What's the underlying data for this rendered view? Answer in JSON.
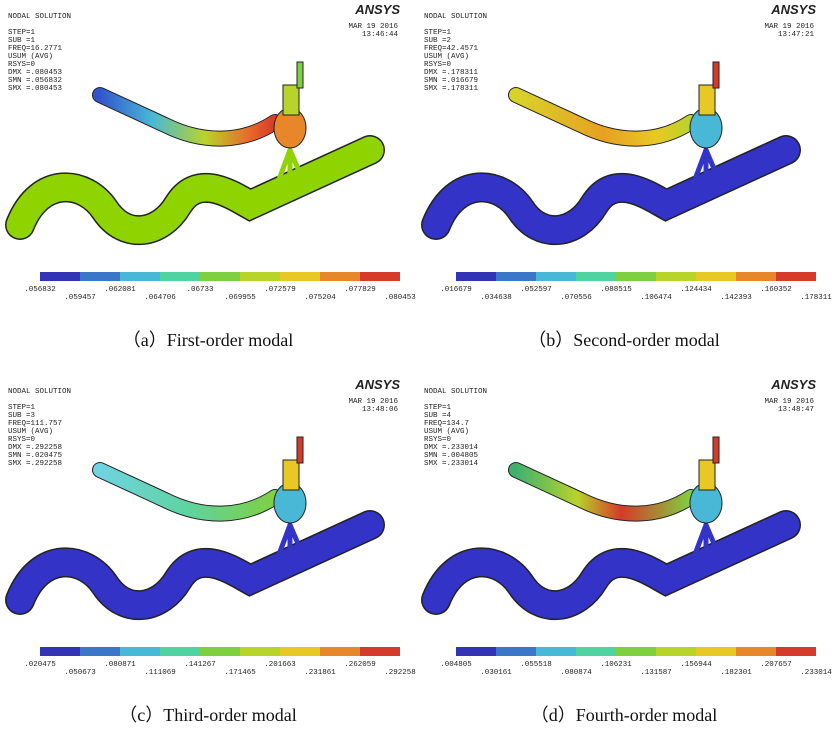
{
  "panels": [
    {
      "info": [
        "NODAL SOLUTION",
        "STEP=1",
        "SUB =1",
        "FREQ=16.2771",
        "USUM       (AVG)",
        "RSYS=0",
        "DMX =.080453",
        "SMN =.056832",
        "SMX =.080453"
      ],
      "date": "MAR 19 2016",
      "time": "13:46:44",
      "logo": "ANSYS",
      "legend": [
        ".056832",
        ".059457",
        ".062081",
        ".064706",
        ".06733",
        ".069955",
        ".072579",
        ".075204",
        ".077829",
        ".080453"
      ],
      "caption": "（a）First-order modal"
    },
    {
      "info": [
        "NODAL SOLUTION",
        "STEP=1",
        "SUB =2",
        "FREQ=42.4571",
        "USUM       (AVG)",
        "RSYS=0",
        "DMX =.178311",
        "SMN =.016679",
        "SMX =.178311"
      ],
      "date": "MAR 19 2016",
      "time": "13:47:21",
      "logo": "ANSYS",
      "legend": [
        ".016679",
        ".034638",
        ".052597",
        ".070556",
        ".088515",
        ".106474",
        ".124434",
        ".142393",
        ".160352",
        ".178311"
      ],
      "caption": "（b）Second-order modal"
    },
    {
      "info": [
        "NODAL SOLUTION",
        "STEP=1",
        "SUB =3",
        "FREQ=111.757",
        "USUM       (AVG)",
        "RSYS=0",
        "DMX =.292258",
        "SMN =.020475",
        "SMX =.292258"
      ],
      "date": "MAR 19 2016",
      "time": "13:48:06",
      "logo": "ANSYS",
      "legend": [
        ".020475",
        ".050673",
        ".080871",
        ".111069",
        ".141267",
        ".171465",
        ".201663",
        ".231861",
        ".262059",
        ".292258"
      ],
      "caption": "（c）Third-order modal"
    },
    {
      "info": [
        "NODAL SOLUTION",
        "STEP=1",
        "SUB =4",
        "FREQ=134.7",
        "USUM       (AVG)",
        "RSYS=0",
        "DMX =.233014",
        "SMN =.004805",
        "SMX =.233014"
      ],
      "date": "MAR 19 2016",
      "time": "13:48:47",
      "logo": "ANSYS",
      "legend": [
        ".004805",
        ".030161",
        ".055518",
        ".080874",
        ".106231",
        ".131587",
        ".156944",
        ".182301",
        ".207657",
        ".233014"
      ],
      "caption": "（d）Fourth-order modal"
    }
  ]
}
